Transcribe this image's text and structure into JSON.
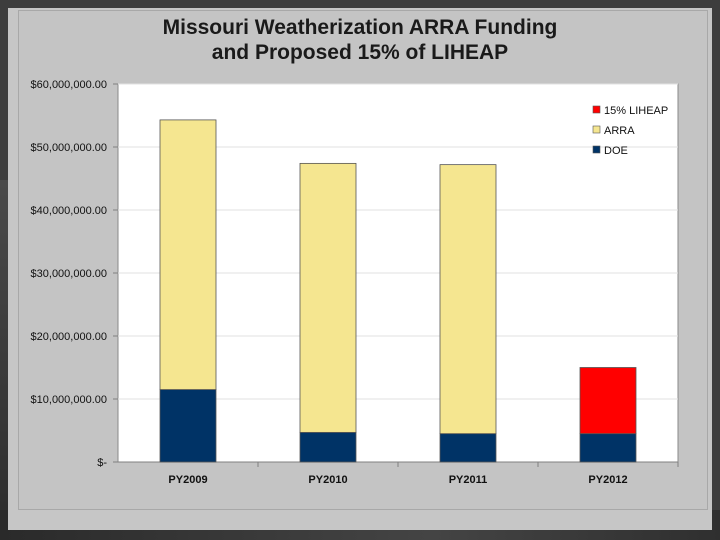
{
  "chart_data": {
    "type": "bar",
    "stacked": true,
    "title": [
      "Missouri Weatherization ARRA Funding",
      "and Proposed 15% of LIHEAP"
    ],
    "categories": [
      "PY2009",
      "PY2010",
      "PY2011",
      "PY2012"
    ],
    "series": [
      {
        "name": "DOE",
        "color": "#003366",
        "values": [
          11500000,
          4700000,
          4500000,
          4500000
        ]
      },
      {
        "name": "ARRA",
        "color": "#f5e690",
        "values": [
          42800000,
          42700000,
          42700000,
          0
        ]
      },
      {
        "name": "15% LIHEAP",
        "color": "#ff0000",
        "values": [
          0,
          0,
          0,
          10500000
        ]
      }
    ],
    "legend_order": [
      "15% LIHEAP",
      "ARRA",
      "DOE"
    ],
    "legend_position": "top-right",
    "ylim": [
      0,
      60000000
    ],
    "yticks": [
      0,
      10000000,
      20000000,
      30000000,
      40000000,
      50000000,
      60000000
    ],
    "ytick_labels": [
      "$-",
      "$10,000,000.00",
      "$20,000,000.00",
      "$30,000,000.00",
      "$40,000,000.00",
      "$50,000,000.00",
      "$60,000,000.00"
    ],
    "xlabel": "",
    "ylabel": "",
    "grid": true
  }
}
